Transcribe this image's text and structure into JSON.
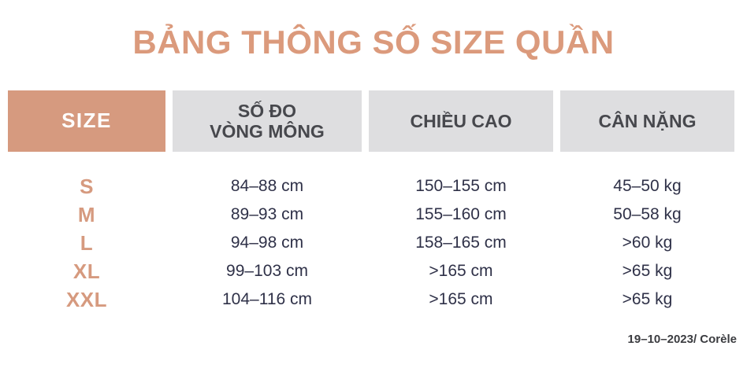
{
  "title": "BẢNG THÔNG SỐ SIZE QUẦN",
  "table": {
    "headers": [
      {
        "label": "SIZE"
      },
      {
        "label": "SỐ ĐO\nVÒNG MÔNG"
      },
      {
        "label": "CHIỀU CAO"
      },
      {
        "label": "CÂN NẶNG"
      }
    ],
    "rows": [
      {
        "size": "S",
        "hip": "84–88 cm",
        "height": "150–155 cm",
        "weight": "45–50 kg"
      },
      {
        "size": "M",
        "hip": "89–93 cm",
        "height": "155–160 cm",
        "weight": "50–58 kg"
      },
      {
        "size": "L",
        "hip": "94–98 cm",
        "height": "158–165 cm",
        "weight": ">60 kg"
      },
      {
        "size": "XL",
        "hip": "99–103 cm",
        "height": ">165 cm",
        "weight": ">65 kg"
      },
      {
        "size": "XXL",
        "hip": "104–116 cm",
        "height": ">165 cm",
        "weight": ">65 kg"
      }
    ]
  },
  "footer": {
    "text": "19–10–2023/ Corèle"
  },
  "colors": {
    "accent": "#D69A7F",
    "accent_title": "#DB9A7C",
    "header_bg": "#DEDEE0",
    "header_text": "#47484D",
    "value_text": "#2F3148",
    "footer_text": "#3B3C40"
  }
}
